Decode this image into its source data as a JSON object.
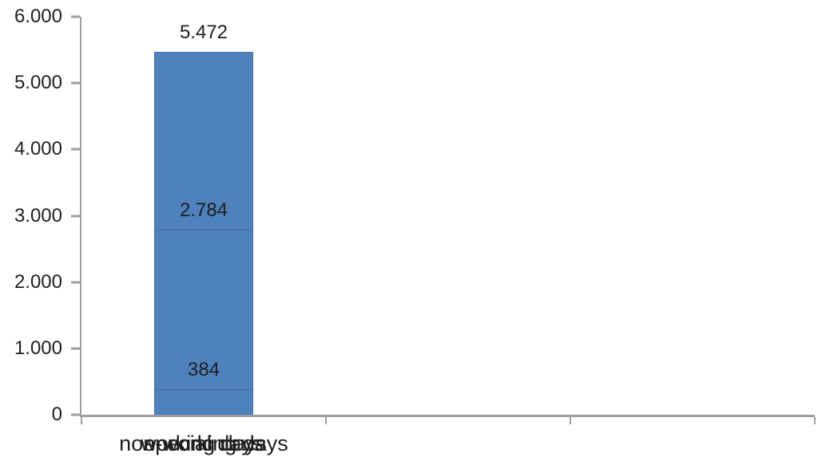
{
  "chart_data": {
    "type": "bar",
    "title": "",
    "xlabel": "",
    "ylabel": "",
    "categories": [
      "working days",
      "non-working days",
      "special days"
    ],
    "values": [
      5472,
      2784,
      384
    ],
    "value_labels": [
      "5.472",
      "2.784",
      "384"
    ],
    "ytick_labels": [
      "6.000",
      "5.000",
      "4.000",
      "3.000",
      "2.000",
      "1.000",
      "0"
    ],
    "ylim": [
      0,
      6000
    ],
    "grid": false,
    "legend": false,
    "bar_color": "#4F81BD",
    "bar_border_color": "#446FA3",
    "axis_color": "#9E9E9E",
    "text_color": "#1F1F1F"
  }
}
